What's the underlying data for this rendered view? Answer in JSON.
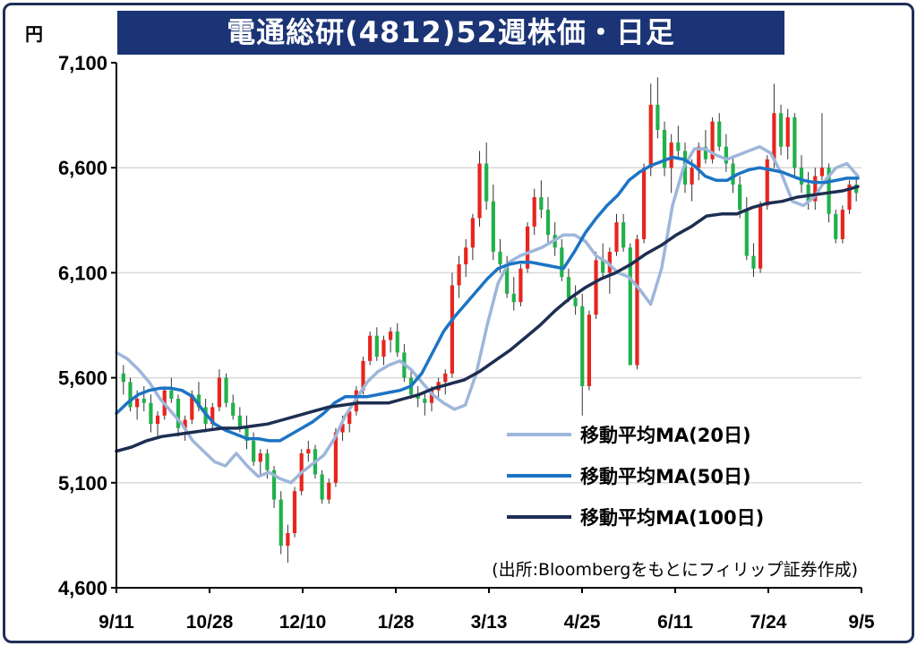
{
  "title": "電通総研(4812)52週株価・日足",
  "unit": "円",
  "source": "(出所:Bloombergをもとにフィリップ証券作成)",
  "colors": {
    "title_bg": "#1b3475",
    "up": "#e8251f",
    "down": "#21b14b",
    "ma20": "#9eb6da",
    "ma50": "#1c74c4",
    "ma100": "#1d2e52",
    "grid": "#d9d9d9"
  },
  "chart_data": {
    "type": "candlestick",
    "y_ticks": [
      "7,100",
      "6,600",
      "6,100",
      "5,600",
      "5,100",
      "4,600"
    ],
    "x_ticks": [
      "9/11",
      "10/28",
      "12/10",
      "1/28",
      "3/13",
      "4/25",
      "6/11",
      "7/24",
      "9/5"
    ],
    "ylim": [
      4600,
      7100
    ],
    "grid": true,
    "legend_position": "bottom-right",
    "series": [
      {
        "name": "移動平均MA(20日)",
        "color": "#9eb6da",
        "values": [
          5720,
          5690,
          5640,
          5580,
          5500,
          5440,
          5380,
          5300,
          5250,
          5200,
          5180,
          5240,
          5180,
          5130,
          5150,
          5120,
          5100,
          5150,
          5190,
          5230,
          5310,
          5420,
          5500,
          5580,
          5630,
          5660,
          5680,
          5640,
          5580,
          5520,
          5480,
          5450,
          5470,
          5620,
          5850,
          6050,
          6150,
          6180,
          6200,
          6220,
          6250,
          6280,
          6280,
          6250,
          6180,
          6150,
          6100,
          6080,
          6020,
          5950,
          6120,
          6420,
          6600,
          6690,
          6690,
          6660,
          6640,
          6660,
          6680,
          6700,
          6670,
          6570,
          6440,
          6420,
          6460,
          6540,
          6600,
          6620,
          6560
        ]
      },
      {
        "name": "移動平均MA(50日)",
        "color": "#1c74c4",
        "values": [
          5430,
          5480,
          5520,
          5540,
          5550,
          5550,
          5540,
          5510,
          5440,
          5380,
          5350,
          5330,
          5310,
          5310,
          5300,
          5300,
          5330,
          5360,
          5390,
          5430,
          5480,
          5510,
          5510,
          5510,
          5520,
          5530,
          5540,
          5560,
          5620,
          5720,
          5820,
          5890,
          5950,
          6010,
          6070,
          6120,
          6140,
          6150,
          6150,
          6140,
          6130,
          6120,
          6200,
          6290,
          6360,
          6420,
          6470,
          6540,
          6580,
          6610,
          6630,
          6650,
          6640,
          6610,
          6560,
          6540,
          6540,
          6570,
          6590,
          6600,
          6590,
          6580,
          6560,
          6540,
          6530,
          6530,
          6540,
          6550,
          6550
        ]
      },
      {
        "name": "移動平均MA(100日)",
        "color": "#1d2e52",
        "values": [
          5250,
          5270,
          5300,
          5320,
          5330,
          5340,
          5350,
          5360,
          5360,
          5370,
          5380,
          5400,
          5420,
          5440,
          5460,
          5470,
          5480,
          5480,
          5480,
          5500,
          5520,
          5550,
          5570,
          5590,
          5630,
          5680,
          5730,
          5790,
          5850,
          5920,
          5980,
          6030,
          6070,
          6100,
          6140,
          6190,
          6230,
          6280,
          6320,
          6370,
          6380,
          6380,
          6410,
          6430,
          6440,
          6460,
          6470,
          6480,
          6490,
          6510
        ]
      }
    ],
    "candles_ohlc": [
      [
        5620,
        5660,
        5520,
        5580
      ],
      [
        5580,
        5600,
        5440,
        5460
      ],
      [
        5460,
        5540,
        5400,
        5500
      ],
      [
        5500,
        5560,
        5440,
        5480
      ],
      [
        5480,
        5520,
        5340,
        5380
      ],
      [
        5380,
        5440,
        5320,
        5420
      ],
      [
        5420,
        5560,
        5400,
        5540
      ],
      [
        5540,
        5600,
        5480,
        5500
      ],
      [
        5500,
        5520,
        5320,
        5360
      ],
      [
        5360,
        5420,
        5300,
        5400
      ],
      [
        5400,
        5540,
        5380,
        5520
      ],
      [
        5520,
        5580,
        5440,
        5460
      ],
      [
        5460,
        5500,
        5340,
        5380
      ],
      [
        5380,
        5480,
        5360,
        5460
      ],
      [
        5460,
        5640,
        5440,
        5600
      ],
      [
        5600,
        5620,
        5460,
        5480
      ],
      [
        5480,
        5520,
        5400,
        5420
      ],
      [
        5420,
        5460,
        5340,
        5360
      ],
      [
        5360,
        5420,
        5260,
        5300
      ],
      [
        5300,
        5340,
        5180,
        5200
      ],
      [
        5200,
        5260,
        5140,
        5240
      ],
      [
        5240,
        5260,
        5120,
        5160
      ],
      [
        5160,
        5180,
        4980,
        5020
      ],
      [
        5020,
        5060,
        4760,
        4800
      ],
      [
        4800,
        4900,
        4720,
        4860
      ],
      [
        4860,
        5080,
        4840,
        5060
      ],
      [
        5060,
        5260,
        5040,
        5240
      ],
      [
        5240,
        5300,
        5200,
        5260
      ],
      [
        5260,
        5280,
        5120,
        5140
      ],
      [
        5140,
        5160,
        5000,
        5020
      ],
      [
        5020,
        5120,
        5000,
        5100
      ],
      [
        5100,
        5360,
        5080,
        5340
      ],
      [
        5340,
        5420,
        5300,
        5380
      ],
      [
        5380,
        5460,
        5340,
        5440
      ],
      [
        5440,
        5560,
        5420,
        5540
      ],
      [
        5540,
        5700,
        5520,
        5680
      ],
      [
        5680,
        5820,
        5660,
        5800
      ],
      [
        5800,
        5840,
        5680,
        5700
      ],
      [
        5700,
        5800,
        5660,
        5780
      ],
      [
        5780,
        5840,
        5720,
        5820
      ],
      [
        5820,
        5860,
        5700,
        5720
      ],
      [
        5720,
        5760,
        5580,
        5600
      ],
      [
        5600,
        5640,
        5500,
        5520
      ],
      [
        5520,
        5560,
        5460,
        5500
      ],
      [
        5500,
        5540,
        5420,
        5480
      ],
      [
        5480,
        5560,
        5440,
        5540
      ],
      [
        5540,
        5600,
        5500,
        5580
      ],
      [
        5580,
        5640,
        5520,
        5620
      ],
      [
        5620,
        6100,
        5600,
        6040
      ],
      [
        6040,
        6180,
        5980,
        6140
      ],
      [
        6140,
        6260,
        6080,
        6220
      ],
      [
        6220,
        6380,
        6160,
        6360
      ],
      [
        6360,
        6680,
        6320,
        6620
      ],
      [
        6620,
        6720,
        6400,
        6440
      ],
      [
        6440,
        6520,
        6160,
        6200
      ],
      [
        6200,
        6260,
        6100,
        6140
      ],
      [
        6140,
        6180,
        5980,
        6000
      ],
      [
        6000,
        6080,
        5920,
        5960
      ],
      [
        5960,
        6140,
        5940,
        6120
      ],
      [
        6120,
        6340,
        6100,
        6320
      ],
      [
        6320,
        6500,
        6280,
        6460
      ],
      [
        6460,
        6540,
        6360,
        6400
      ],
      [
        6400,
        6460,
        6240,
        6280
      ],
      [
        6280,
        6340,
        6180,
        6220
      ],
      [
        6220,
        6260,
        6060,
        6080
      ],
      [
        6080,
        6120,
        5960,
        5980
      ],
      [
        5980,
        6040,
        5900,
        5940
      ],
      [
        5940,
        6000,
        5420,
        5560
      ],
      [
        5560,
        5920,
        5540,
        5900
      ],
      [
        5900,
        6200,
        5880,
        6160
      ],
      [
        6160,
        6240,
        6080,
        6100
      ],
      [
        6100,
        6220,
        6000,
        6200
      ],
      [
        6200,
        6380,
        6180,
        6340
      ],
      [
        6340,
        6380,
        6200,
        6220
      ],
      [
        6220,
        6240,
        5760,
        5660
      ],
      [
        5660,
        6280,
        5640,
        6260
      ],
      [
        6260,
        6620,
        6240,
        6600
      ],
      [
        6600,
        7000,
        6560,
        6900
      ],
      [
        6900,
        7030,
        6740,
        6780
      ],
      [
        6780,
        6820,
        6560,
        6600
      ],
      [
        6600,
        6760,
        6480,
        6720
      ],
      [
        6720,
        6800,
        6640,
        6680
      ],
      [
        6680,
        6720,
        6480,
        6520
      ],
      [
        6520,
        6640,
        6440,
        6600
      ],
      [
        6600,
        6720,
        6540,
        6700
      ],
      [
        6700,
        6780,
        6620,
        6640
      ],
      [
        6640,
        6840,
        6620,
        6820
      ],
      [
        6820,
        6860,
        6680,
        6700
      ],
      [
        6700,
        6760,
        6580,
        6620
      ],
      [
        6620,
        6660,
        6480,
        6520
      ],
      [
        6520,
        6560,
        6360,
        6400
      ],
      [
        6400,
        6460,
        6160,
        6180
      ],
      [
        6180,
        6240,
        6080,
        6120
      ],
      [
        6120,
        6440,
        6100,
        6420
      ],
      [
        6420,
        6660,
        6400,
        6640
      ],
      [
        6640,
        7000,
        6600,
        6860
      ],
      [
        6860,
        6900,
        6660,
        6700
      ],
      [
        6700,
        6880,
        6640,
        6840
      ],
      [
        6840,
        6860,
        6560,
        6600
      ],
      [
        6600,
        6660,
        6480,
        6520
      ],
      [
        6520,
        6580,
        6400,
        6440
      ],
      [
        6440,
        6600,
        6400,
        6560
      ],
      [
        6560,
        6860,
        6540,
        6600
      ],
      [
        6600,
        6620,
        6340,
        6380
      ],
      [
        6380,
        6400,
        6240,
        6260
      ],
      [
        6260,
        6420,
        6240,
        6400
      ],
      [
        6400,
        6540,
        6380,
        6520
      ],
      [
        6520,
        6560,
        6440,
        6480
      ]
    ]
  },
  "legend": [
    {
      "label": "移動平均MA(20日)",
      "color": "#9eb6da"
    },
    {
      "label": "移動平均MA(50日)",
      "color": "#1c74c4"
    },
    {
      "label": "移動平均MA(100日)",
      "color": "#1d2e52"
    }
  ]
}
